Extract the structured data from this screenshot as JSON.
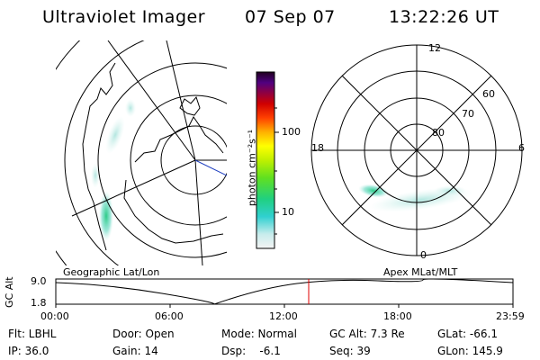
{
  "header": {
    "instrument": "Ultraviolet Imager",
    "date": "07 Sep 07",
    "time": "13:22:26 UT"
  },
  "colorbar": {
    "unit_label": "photon cm⁻²s⁻¹",
    "ticks": [
      "100",
      "10"
    ]
  },
  "left_panel": {
    "label": "Geographic Lat/Lon"
  },
  "right_panel": {
    "label": "Apex  MLat/MLT",
    "mlt_labels": [
      "12",
      "18",
      "6",
      "0"
    ],
    "mlat_labels": [
      "60",
      "70",
      "80"
    ]
  },
  "altitude_plot": {
    "ylabel": "GC Alt",
    "y_top": "9.0",
    "y_bottom": "1.8",
    "x_ticks": [
      "00:00",
      "06:00",
      "12:00",
      "18:00",
      "23:59"
    ],
    "current_time_marker": "13:22"
  },
  "info": {
    "filter": "Flt: LBHL",
    "ip": "IP: 36.0",
    "door": "Door: Open",
    "gain": "Gain: 14",
    "mode": "Mode: Normal",
    "dsp": "Dsp:    -6.1",
    "gc_alt": "GC Alt: 7.3 Re",
    "seq": "Seq: 39",
    "glat": "GLat: -66.1",
    "glon": "GLon: 145.9"
  },
  "colors": {
    "marker": "#e00000",
    "aurora_green": "#30c060",
    "aurora_cyan": "#a8e8e0"
  }
}
